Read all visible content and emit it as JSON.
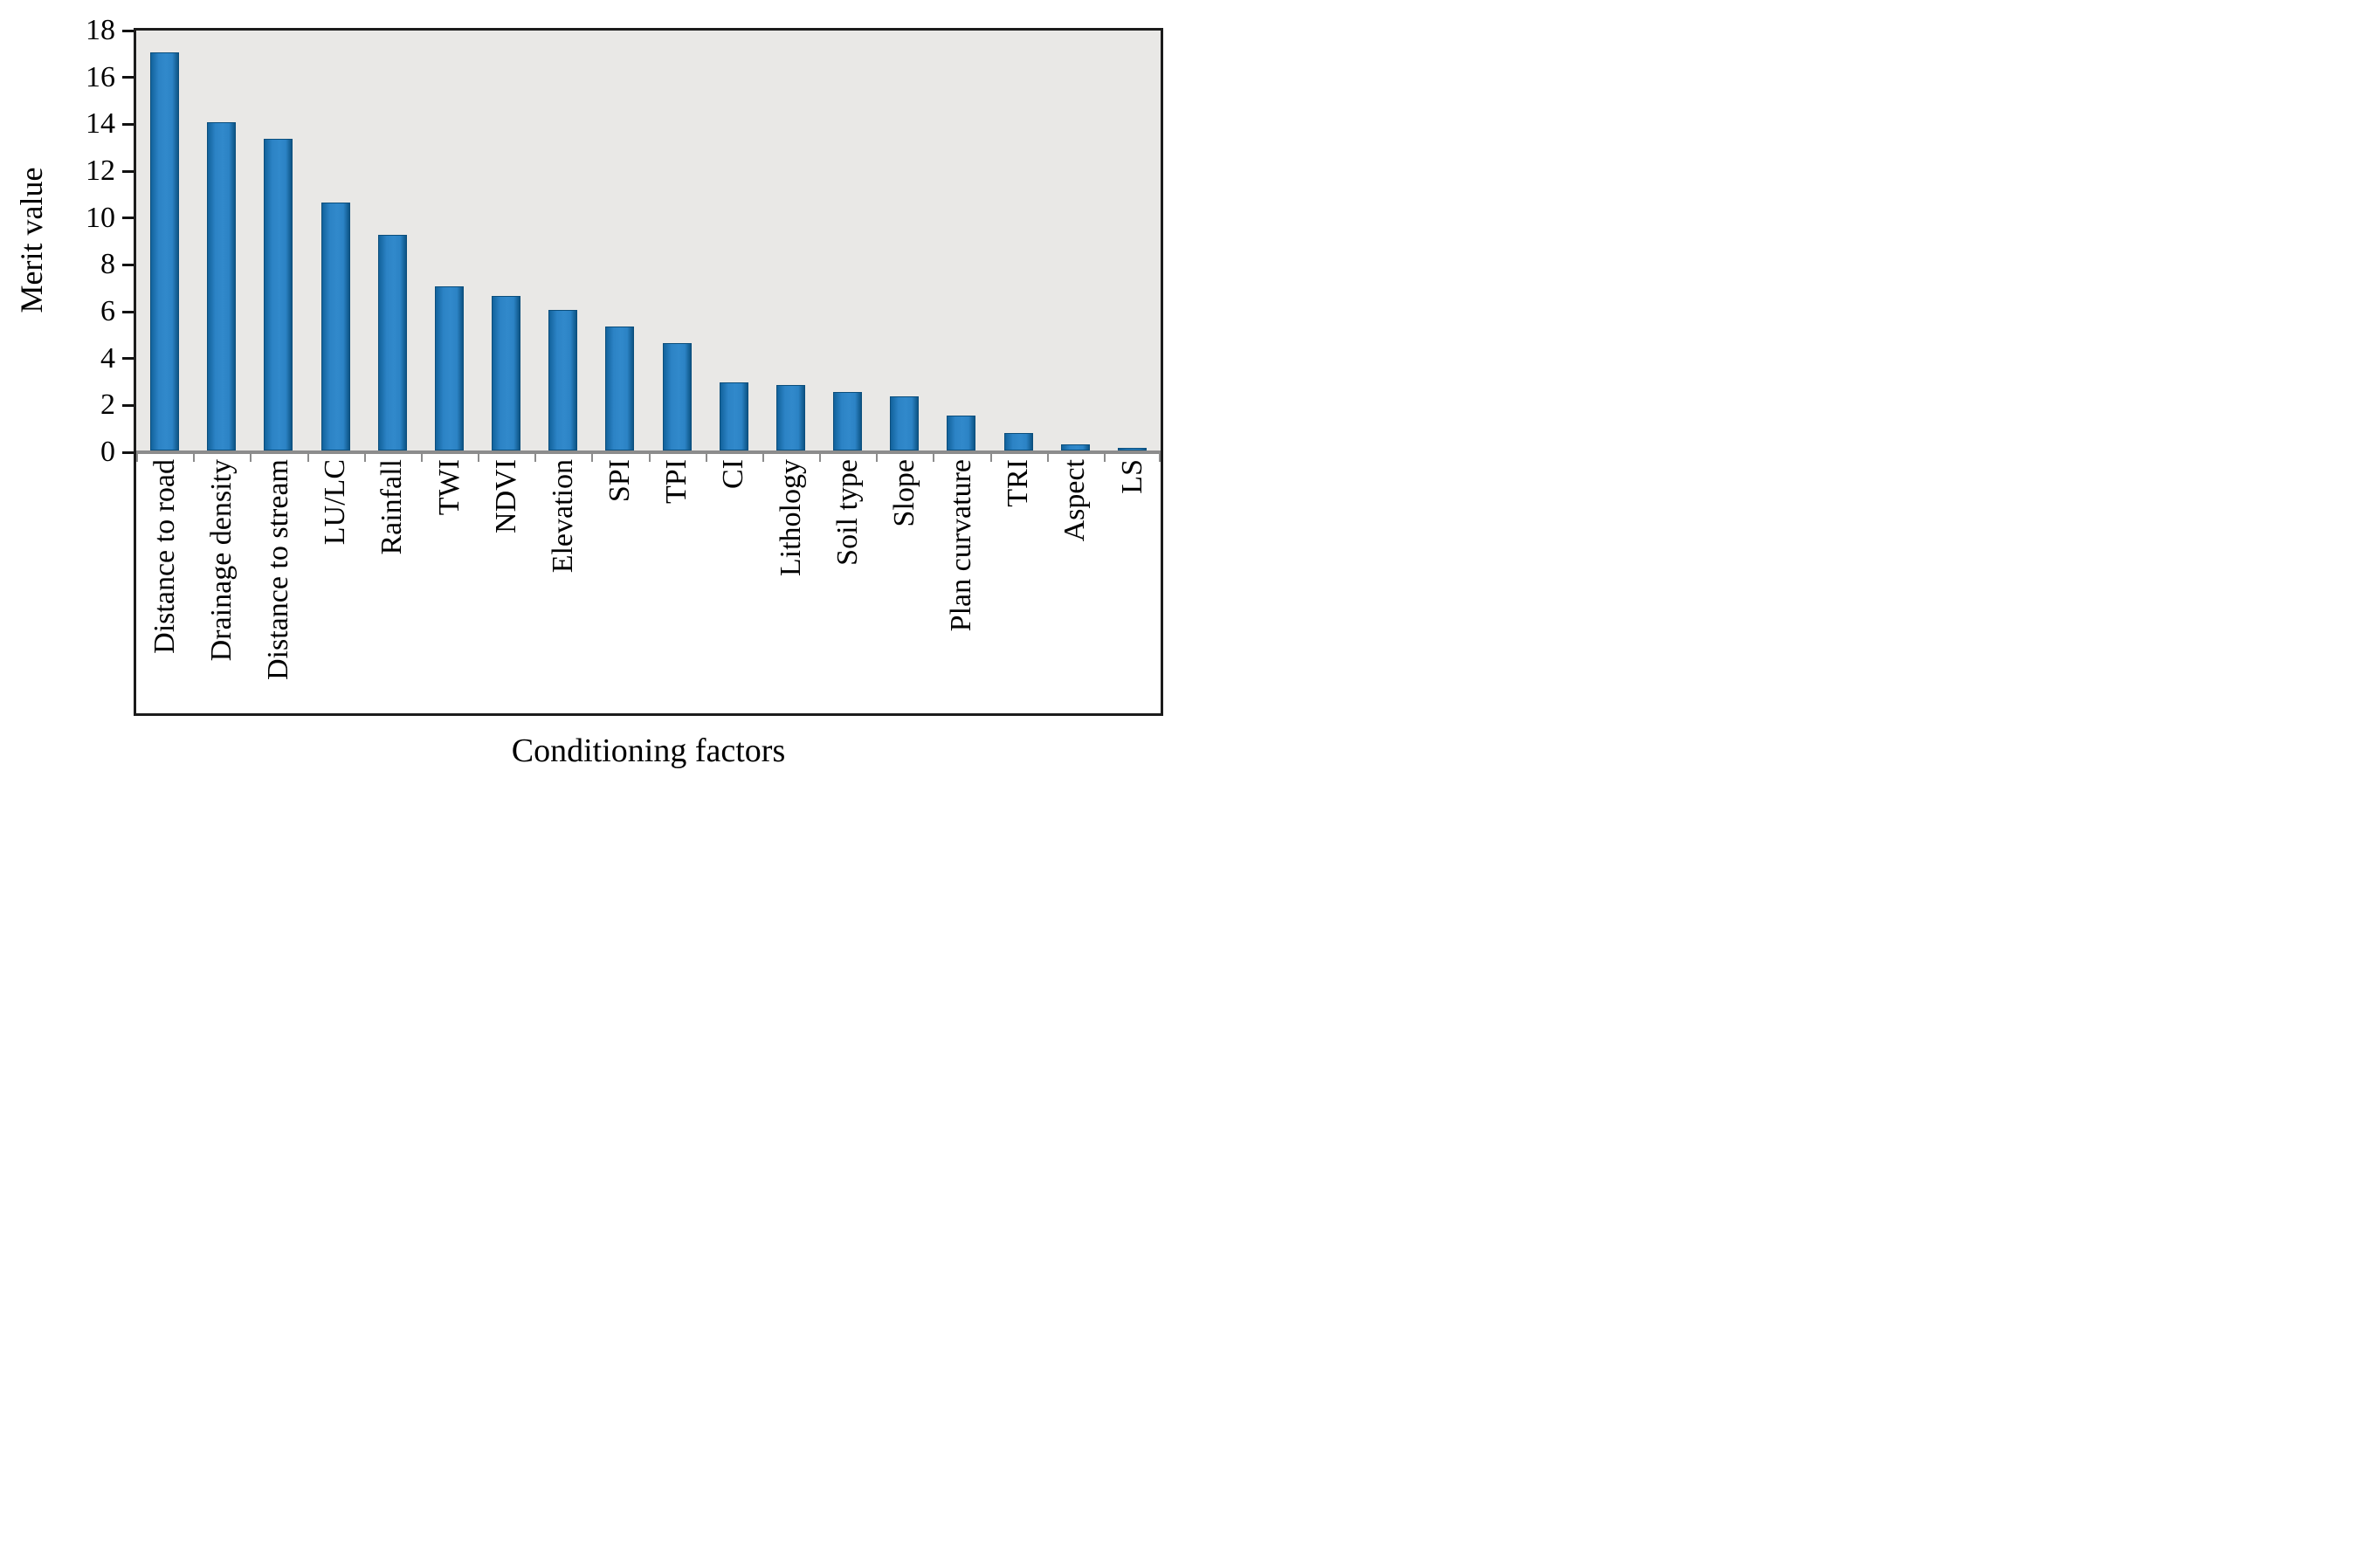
{
  "figure": {
    "ylabel": "Merit value",
    "xlabel": "Conditioning factors"
  },
  "chart_data": {
    "type": "bar",
    "title": "",
    "xlabel": "Conditioning factors",
    "ylabel": "Merit value",
    "categories": [
      "Distance to road",
      "Drainage density",
      "Distance to stream",
      "LU/LC",
      "Rainfall",
      "TWI",
      "NDVI",
      "Elevation",
      "SPI",
      "TPI",
      "CI",
      "Lithology",
      "Soil type",
      "Slope",
      "Plan curvature",
      "TRI",
      "Aspect",
      "LS"
    ],
    "values": [
      17.0,
      14.0,
      13.3,
      10.6,
      9.2,
      7.0,
      6.6,
      6.0,
      5.3,
      4.6,
      2.9,
      2.8,
      2.5,
      2.3,
      1.5,
      0.75,
      0.25,
      0.12
    ],
    "ylim": [
      0,
      18
    ],
    "yticks": [
      0,
      2,
      4,
      6,
      8,
      10,
      12,
      14,
      16,
      18
    ],
    "grid": false,
    "legend_position": "none",
    "colors": {
      "bar_fill": "#2c83c5",
      "bar_fill_light": "#3189cb",
      "bar_edge_dark": "#12629c",
      "bar_edge_darker": "#0d5586",
      "bar_border": "#0b4e7c",
      "plot_background": "#e9e8e6",
      "axis_line": "#8c8c8c",
      "frame": "#1b1b1b",
      "text": "#000000"
    }
  }
}
